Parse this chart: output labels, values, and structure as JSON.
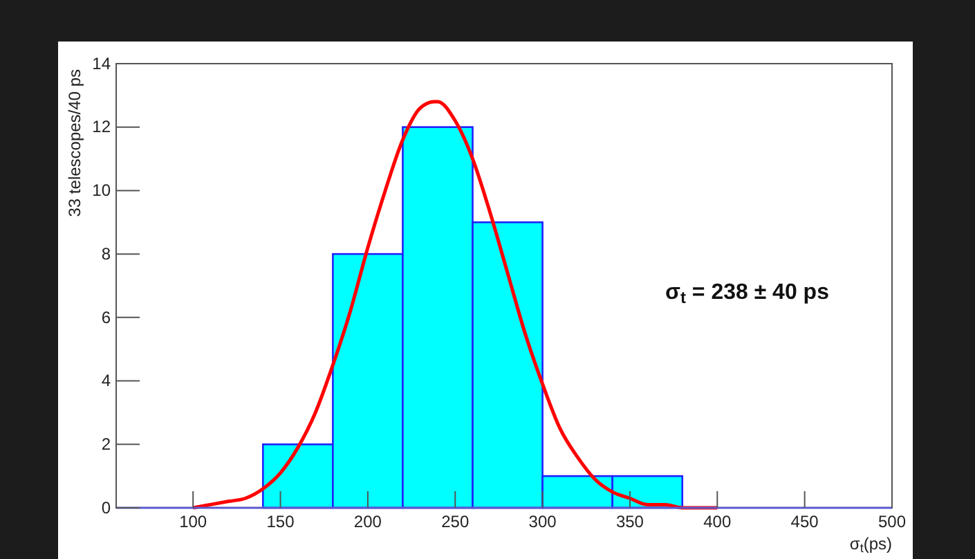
{
  "chart_data": {
    "type": "histogram",
    "xlabel": "σ$_{t}$(ps)",
    "ylabel": "33 telescopes/40 ps",
    "annotations": [
      "σ$_{t}$ = 238 ± 40 ps"
    ],
    "series": [
      {
        "color": "#00ffff",
        "bins": [
          140,
          180,
          220,
          260,
          300,
          340,
          380
        ],
        "values": [
          2,
          8,
          12,
          9,
          1,
          1
        ]
      },
      {
        "type": "line",
        "color": "#ff0000",
        "x": [
          100,
          110,
          120,
          130,
          140,
          150,
          160,
          170,
          180,
          190,
          200,
          210,
          220,
          230,
          238,
          240,
          250,
          260,
          270,
          280,
          290,
          300,
          310,
          320,
          330,
          340,
          350,
          360,
          370,
          380,
          390,
          400
        ],
        "values": [
          0.0,
          0.1,
          0.2,
          0.3,
          0.6,
          1.1,
          1.9,
          3.0,
          4.5,
          6.2,
          8.2,
          10.0,
          11.6,
          12.6,
          12.8,
          12.8,
          12.2,
          11.0,
          9.3,
          7.4,
          5.5,
          3.9,
          2.5,
          1.6,
          0.9,
          0.5,
          0.3,
          0.1,
          0.1,
          0.0,
          0.0,
          0.0
        ]
      }
    ],
    "xlim": [
      56,
      500
    ],
    "ylim": [
      0,
      14
    ],
    "xticks": [
      100,
      150,
      200,
      250,
      300,
      350,
      400,
      450,
      500
    ],
    "yticks": [
      0,
      2,
      4,
      6,
      8,
      10,
      12,
      14
    ],
    "grid": false,
    "line_style": "solid",
    "marker": "none"
  }
}
